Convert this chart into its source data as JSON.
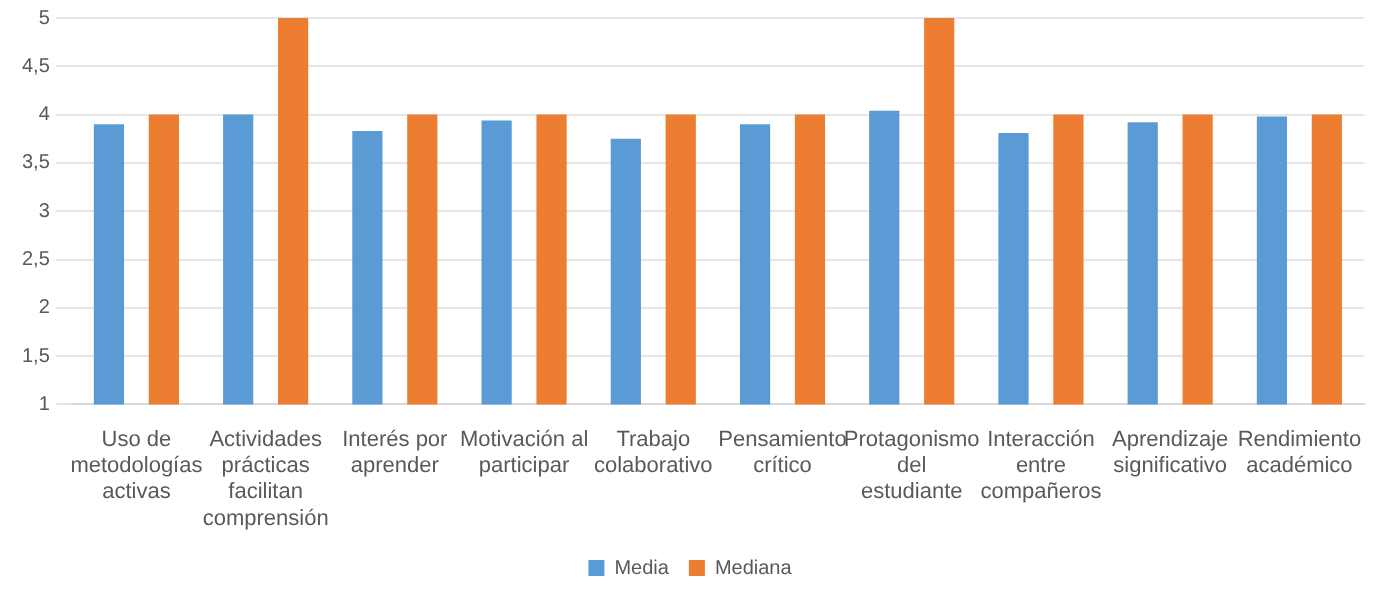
{
  "chart_data": {
    "type": "bar",
    "categories": [
      "Uso de metodologías activas",
      "Actividades prácticas facilitan comprensión",
      "Interés por aprender",
      "Motivación al participar",
      "Trabajo colaborativo",
      "Pensamiento crítico",
      "Protagonismo del estudiante",
      "Interacción entre compañeros",
      "Aprendizaje significativo",
      "Rendimiento académico"
    ],
    "series": [
      {
        "name": "Media",
        "color": "#5b9bd5",
        "values": [
          3.9,
          4.0,
          3.83,
          3.94,
          3.75,
          3.9,
          4.04,
          3.81,
          3.92,
          3.98
        ]
      },
      {
        "name": "Mediana",
        "color": "#ed7d31",
        "values": [
          4,
          5,
          4,
          4,
          4,
          4,
          5,
          4,
          4,
          4
        ]
      }
    ],
    "ylim": [
      1,
      5
    ],
    "yticks": [
      1,
      {
        "value": 1.5,
        "label": "1,5"
      },
      2,
      {
        "value": 2.5,
        "label": "2,5"
      },
      3,
      {
        "value": 3.5,
        "label": "3,5"
      },
      4,
      {
        "value": 4.5,
        "label": "4,5"
      },
      5
    ],
    "grid": "y",
    "legend": "bottom"
  }
}
